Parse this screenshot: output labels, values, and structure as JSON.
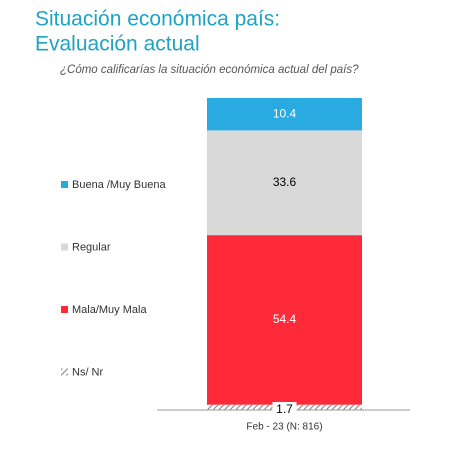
{
  "chart_data": {
    "type": "stacked-bar",
    "title": [
      "Situación económica país:",
      "Evaluación actual"
    ],
    "subtitle": "¿Cómo calificarías la situación económica actual del país?",
    "categories": [
      "Feb - 23 (N: 816)"
    ],
    "series": [
      {
        "name": "Buena /Muy Buena",
        "color": "#29aae1",
        "label_color": "#ffffff",
        "values": [
          10.4
        ]
      },
      {
        "name": "Regular",
        "color": "#d9d9d9",
        "label_color": "#000000",
        "values": [
          33.6
        ]
      },
      {
        "name": "Mala/Muy Mala",
        "color": "#fe2a3a",
        "label_color": "#ffffff",
        "values": [
          54.4
        ]
      },
      {
        "name": "Ns/ Nr",
        "color": "hatch",
        "label_color": "#000000",
        "values": [
          1.7
        ]
      }
    ]
  }
}
